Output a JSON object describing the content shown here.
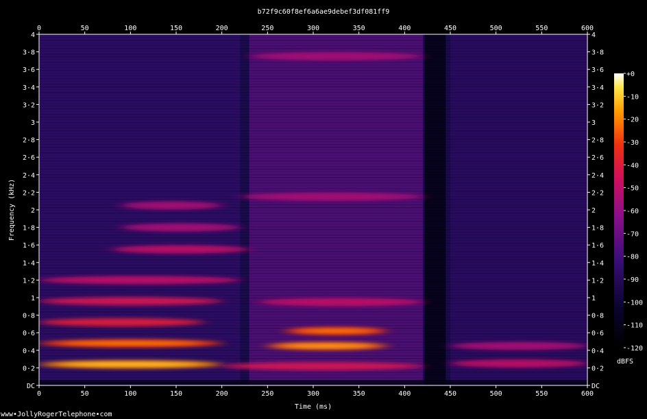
{
  "chart_data": {
    "type": "heatmap",
    "title": "b72f9c60f8ef6a6ae9debef3df081ff9",
    "xlabel": "Time (ms)",
    "ylabel": "Frequency (kHz)",
    "xlim": [
      0,
      600
    ],
    "ylim": [
      0,
      4
    ],
    "x_ticks": [
      "0",
      "50",
      "100",
      "150",
      "200",
      "250",
      "300",
      "350",
      "400",
      "450",
      "500",
      "550",
      "600"
    ],
    "y_ticks": [
      "DC",
      "0·2",
      "0·4",
      "0·6",
      "0·8",
      "1",
      "1·2",
      "1·4",
      "1·6",
      "1·8",
      "2",
      "2·2",
      "2·4",
      "2·6",
      "2·8",
      "3",
      "3·2",
      "3·4",
      "3·6",
      "3·8",
      "4"
    ],
    "colorbar": {
      "label": "dBFS",
      "range": [
        -120,
        0
      ],
      "ticks": [
        "+0",
        "-10",
        "-20",
        "-30",
        "-40",
        "-50",
        "-60",
        "-70",
        "-80",
        "-90",
        "-100",
        "-110",
        "-120"
      ]
    },
    "bands": [
      {
        "t": [
          0,
          200
        ],
        "f": 0.24,
        "db": -20
      },
      {
        "t": [
          200,
          420
        ],
        "f": 0.22,
        "db": -45
      },
      {
        "t": [
          0,
          200
        ],
        "f": 0.48,
        "db": -30
      },
      {
        "t": [
          250,
          380
        ],
        "f": 0.45,
        "db": -25
      },
      {
        "t": [
          0,
          180
        ],
        "f": 0.72,
        "db": -40
      },
      {
        "t": [
          270,
          380
        ],
        "f": 0.62,
        "db": -30
      },
      {
        "t": [
          0,
          200
        ],
        "f": 0.96,
        "db": -45
      },
      {
        "t": [
          240,
          420
        ],
        "f": 0.95,
        "db": -50
      },
      {
        "t": [
          0,
          220
        ],
        "f": 1.2,
        "db": -50
      },
      {
        "t": [
          80,
          230
        ],
        "f": 1.55,
        "db": -50
      },
      {
        "t": [
          90,
          220
        ],
        "f": 1.8,
        "db": -55
      },
      {
        "t": [
          90,
          200
        ],
        "f": 2.05,
        "db": -55
      },
      {
        "t": [
          220,
          420
        ],
        "f": 2.15,
        "db": -55
      },
      {
        "t": [
          230,
          420
        ],
        "f": 3.75,
        "db": -55
      },
      {
        "t": [
          450,
          600
        ],
        "f": 0.25,
        "db": -50
      },
      {
        "t": [
          450,
          600
        ],
        "f": 0.45,
        "db": -55
      }
    ]
  },
  "footer": {
    "watermark": "www•JollyRogerTelephone•com"
  }
}
